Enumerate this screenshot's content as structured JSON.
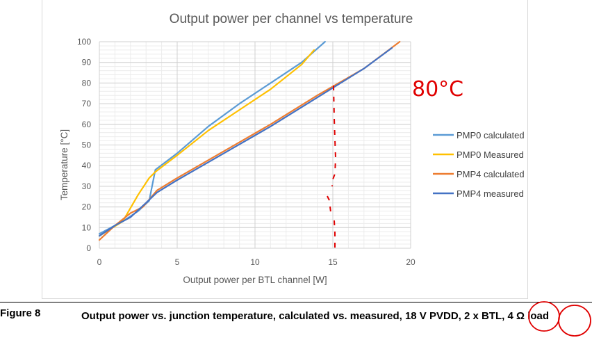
{
  "chart_data": {
    "type": "line",
    "title": "Output power per channel vs temperature",
    "xlabel": "Output power per BTL channel [W]",
    "ylabel": "Temperature [°C]",
    "xlim": [
      0,
      20
    ],
    "ylim": [
      0,
      100
    ],
    "xticks": [
      "0",
      "5",
      "10",
      "15",
      "20"
    ],
    "yticks": [
      "0",
      "10",
      "20",
      "30",
      "40",
      "50",
      "60",
      "70",
      "80",
      "90",
      "100"
    ],
    "grid": true,
    "legend_position": "right",
    "series": [
      {
        "name": "PMP0 calculated",
        "color": "#5b9bd5",
        "x": [
          0,
          1.5,
          2.5,
          3.2,
          3.6,
          5,
          7,
          9,
          11,
          13,
          14.5
        ],
        "y": [
          7,
          13,
          18,
          23,
          38,
          46,
          59,
          70,
          80,
          90,
          100
        ]
      },
      {
        "name": "PMP0 Measured",
        "color": "#ffc000",
        "x": [
          0,
          1.5,
          2.5,
          3.2,
          3.6,
          5,
          7,
          9,
          11,
          13,
          13.8
        ],
        "y": [
          6,
          13,
          26,
          34,
          37,
          45,
          57,
          67,
          77,
          89,
          96
        ]
      },
      {
        "name": "PMP4 calculated",
        "color": "#ed7d31",
        "x": [
          0,
          1,
          2,
          2.8,
          3.7,
          5,
          8,
          11,
          14,
          17,
          19.3
        ],
        "y": [
          4,
          11,
          17,
          20,
          28,
          34,
          47,
          60,
          74,
          87,
          100
        ]
      },
      {
        "name": "PMP4 measured",
        "color": "#4472c4",
        "x": [
          0,
          1,
          2,
          3,
          3.7,
          5,
          8,
          11,
          14,
          17,
          18.8
        ],
        "y": [
          6,
          11,
          15,
          22,
          27,
          33,
          46,
          59,
          73,
          87,
          97
        ]
      }
    ],
    "annotation": {
      "text": "80°C",
      "color": "#e00000"
    }
  },
  "caption": {
    "label": "Figure 8",
    "text": "Output power vs. junction temperature, calculated vs. measured, 18 V PVDD, 2 x BTL, 4 Ω load"
  }
}
